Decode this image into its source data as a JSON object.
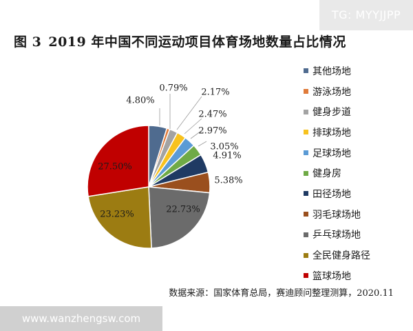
{
  "watermark_top": "TG: MYYJJPP",
  "watermark_bottom": "www.wanzhengsw.com",
  "figure_number": "图 3",
  "source": "数据来源：国家体育总局，赛迪顾问整理测算，2020.11",
  "chart_data": {
    "type": "pie",
    "title": "2019 年中国不同运动项目体育场地数量占比情况",
    "unit": "%",
    "legend_position": "right",
    "slices": [
      {
        "name": "其他场地",
        "value": 4.8,
        "label": "4.80%",
        "color": "#4f6b8f"
      },
      {
        "name": "游泳场地",
        "value": 0.79,
        "label": "0.79%",
        "color": "#e07b3a"
      },
      {
        "name": "健身步道",
        "value": 2.17,
        "label": "2.17%",
        "color": "#a3a3a3"
      },
      {
        "name": "排球场地",
        "value": 2.47,
        "label": "2.47%",
        "color": "#f7c21f"
      },
      {
        "name": "足球场地",
        "value": 2.97,
        "label": "2.97%",
        "color": "#5b9bd5"
      },
      {
        "name": "健身房",
        "value": 3.05,
        "label": "3.05%",
        "color": "#6faa46"
      },
      {
        "name": "田径场地",
        "value": 4.91,
        "label": "4.91%",
        "color": "#1f3a63"
      },
      {
        "name": "羽毛球场地",
        "value": 5.38,
        "label": "5.38%",
        "color": "#9a4f1e"
      },
      {
        "name": "乒乓球场地",
        "value": 22.73,
        "label": "22.73%",
        "color": "#6b6b6b"
      },
      {
        "name": "全民健身路径",
        "value": 23.23,
        "label": "23.23%",
        "color": "#9c7c12"
      },
      {
        "name": "篮球场地",
        "value": 27.5,
        "label": "27.50%",
        "color": "#c00000"
      }
    ]
  }
}
